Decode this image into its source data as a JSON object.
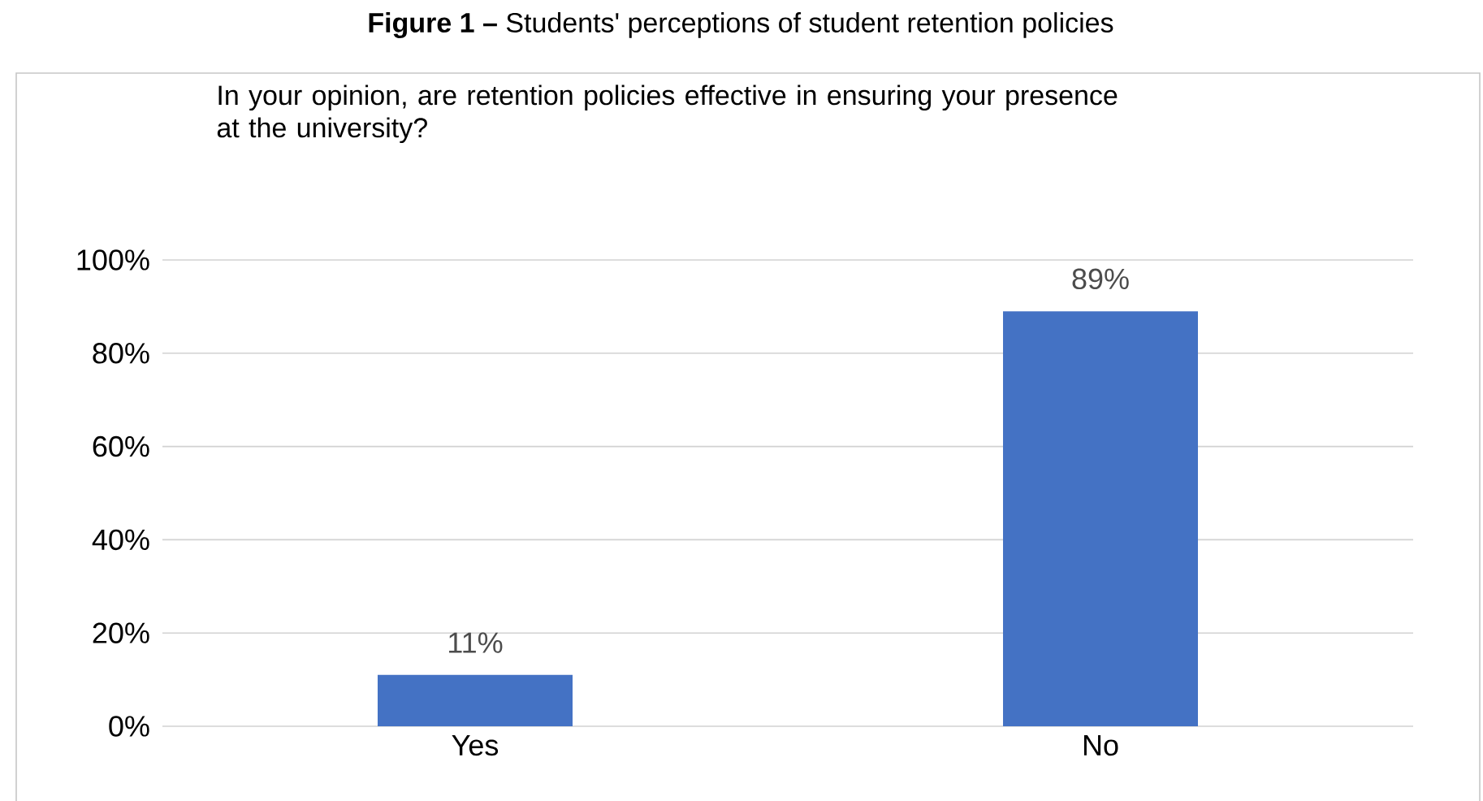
{
  "chart_data": {
    "type": "bar",
    "title": "**Figure 1 –** Students' perceptions of student retention policies",
    "subtitle": "In your opinion, are retention policies effective in ensuring your presence at the university?",
    "categories": [
      "Yes",
      "No"
    ],
    "values": [
      11,
      89
    ],
    "value_labels": [
      "11%",
      "89%"
    ],
    "color": "#4472c4",
    "ylim": [
      0,
      100
    ],
    "yticks": [
      {
        "value": 0,
        "label": "0%"
      },
      {
        "value": 20,
        "label": "20%"
      },
      {
        "value": 40,
        "label": "40%"
      },
      {
        "value": 60,
        "label": "60%"
      },
      {
        "value": 80,
        "label": "80%"
      },
      {
        "value": 100,
        "label": "100%"
      }
    ],
    "grid": "y"
  }
}
